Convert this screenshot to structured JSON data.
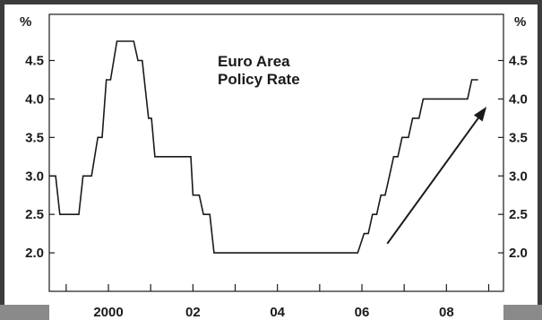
{
  "chart_data": {
    "type": "line",
    "title_lines": [
      "Euro Area",
      "Policy Rate"
    ],
    "unit_left": "%",
    "unit_right": "%",
    "xlabel": "",
    "ylabel": "",
    "xlim": [
      1998.6,
      2009.35
    ],
    "ylim": [
      1.5,
      5.1
    ],
    "x_ticks": [
      {
        "value": 2000,
        "label": "2000"
      },
      {
        "value": 2002,
        "label": "02"
      },
      {
        "value": 2004,
        "label": "04"
      },
      {
        "value": 2006,
        "label": "06"
      },
      {
        "value": 2008,
        "label": "08"
      }
    ],
    "y_ticks": [
      {
        "value": 2.0,
        "label": "2.0"
      },
      {
        "value": 2.5,
        "label": "2.5"
      },
      {
        "value": 3.0,
        "label": "3.0"
      },
      {
        "value": 3.5,
        "label": "3.5"
      },
      {
        "value": 4.0,
        "label": "4.0"
      },
      {
        "value": 4.5,
        "label": "4.5"
      }
    ],
    "grid": false,
    "series": [
      {
        "color": "#1a1a1a",
        "step": true,
        "points": [
          [
            1998.6,
            3.0
          ],
          [
            1998.75,
            3.0
          ],
          [
            1998.85,
            2.5
          ],
          [
            1999.3,
            2.5
          ],
          [
            1999.4,
            3.0
          ],
          [
            1999.6,
            3.0
          ],
          [
            1999.75,
            3.5
          ],
          [
            1999.85,
            3.5
          ],
          [
            1999.95,
            4.25
          ],
          [
            2000.05,
            4.25
          ],
          [
            2000.2,
            4.75
          ],
          [
            2000.6,
            4.75
          ],
          [
            2000.7,
            4.5
          ],
          [
            2000.8,
            4.5
          ],
          [
            2000.85,
            4.25
          ],
          [
            2000.95,
            3.75
          ],
          [
            2001.02,
            3.75
          ],
          [
            2001.1,
            3.25
          ],
          [
            2001.95,
            3.25
          ],
          [
            2002.0,
            2.75
          ],
          [
            2002.15,
            2.75
          ],
          [
            2002.25,
            2.5
          ],
          [
            2002.4,
            2.5
          ],
          [
            2002.5,
            2.0
          ],
          [
            2005.9,
            2.0
          ],
          [
            2006.05,
            2.25
          ],
          [
            2006.15,
            2.25
          ],
          [
            2006.25,
            2.5
          ],
          [
            2006.35,
            2.5
          ],
          [
            2006.45,
            2.75
          ],
          [
            2006.55,
            2.75
          ],
          [
            2006.65,
            3.0
          ],
          [
            2006.75,
            3.25
          ],
          [
            2006.85,
            3.25
          ],
          [
            2006.95,
            3.5
          ],
          [
            2007.1,
            3.5
          ],
          [
            2007.2,
            3.75
          ],
          [
            2007.35,
            3.75
          ],
          [
            2007.45,
            4.0
          ],
          [
            2008.5,
            4.0
          ],
          [
            2008.6,
            4.25
          ],
          [
            2008.75,
            4.25
          ]
        ]
      }
    ],
    "annotation_arrow": {
      "from": [
        2006.6,
        2.12
      ],
      "to": [
        2008.95,
        3.9
      ],
      "color": "#1a1a1a"
    }
  }
}
